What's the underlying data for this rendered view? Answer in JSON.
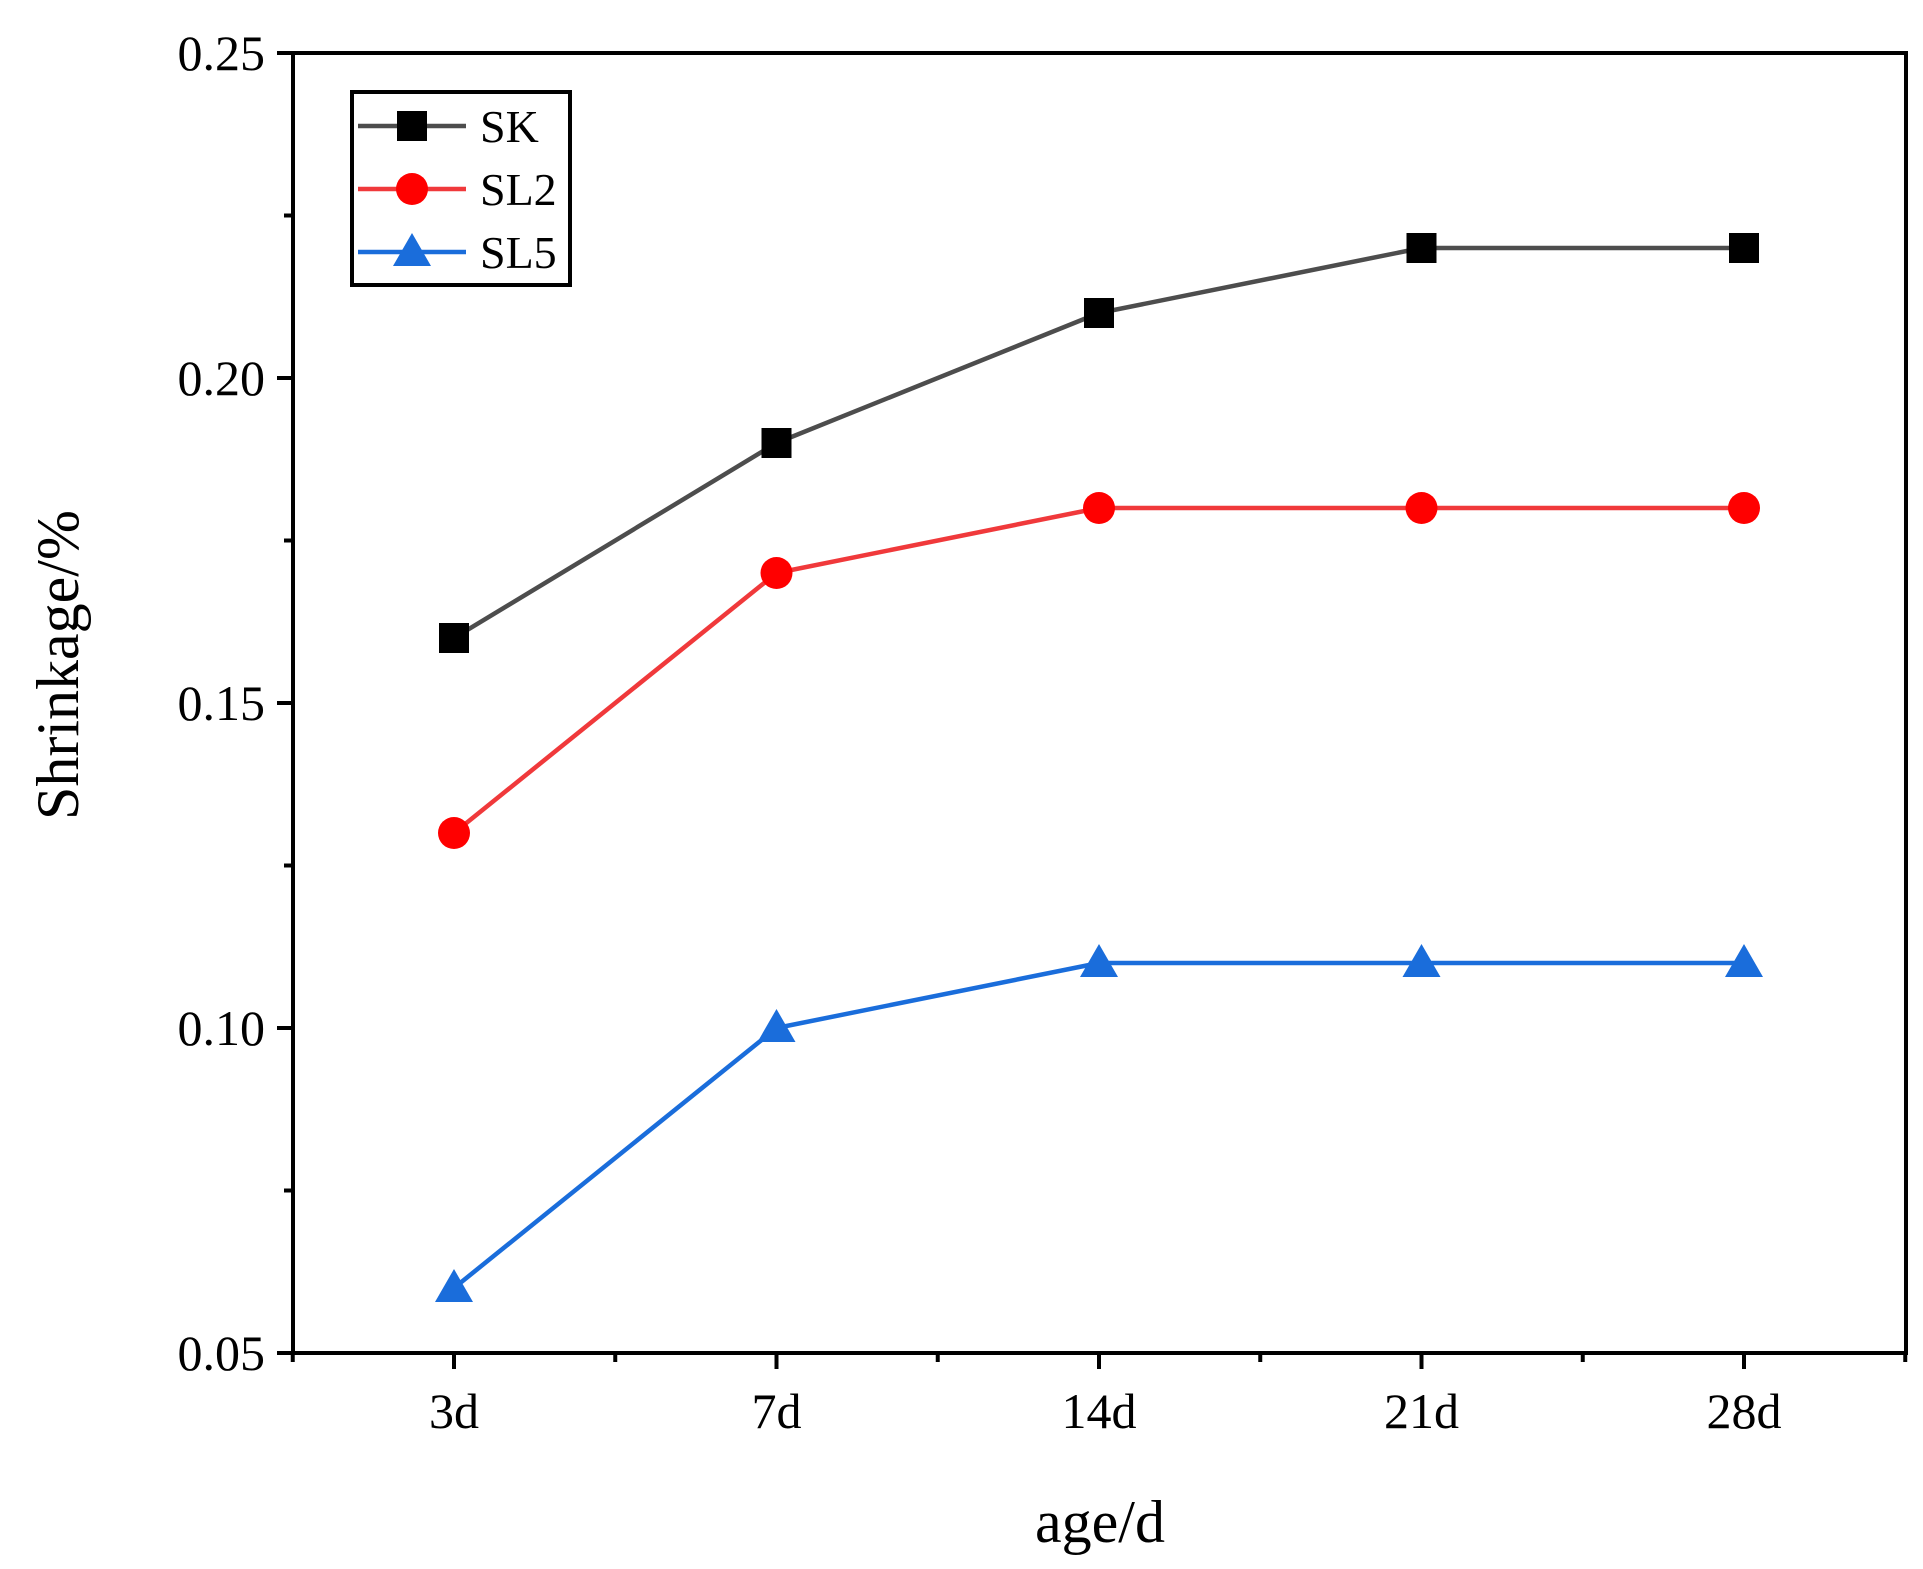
{
  "chart_data": {
    "type": "line",
    "title": "",
    "xlabel": "age/d",
    "ylabel": "Shrinkage/%",
    "categories": [
      "3d",
      "7d",
      "14d",
      "21d",
      "28d"
    ],
    "ylim": [
      0.05,
      0.25
    ],
    "yticks": [
      0.05,
      0.1,
      0.15,
      0.2,
      0.25
    ],
    "ytick_labels": [
      "0.05",
      "0.10",
      "0.15",
      "0.20",
      "0.25"
    ],
    "y_minor_ticks": [
      0.075,
      0.125,
      0.175,
      0.225
    ],
    "grid": false,
    "legend_position": "top-left",
    "series": [
      {
        "name": "SK",
        "marker": "square",
        "color": "#000000",
        "line_color": "#4d4d4d",
        "values": [
          0.16,
          0.19,
          0.21,
          0.22,
          0.22
        ]
      },
      {
        "name": "SL2",
        "marker": "circle",
        "color": "#ff0000",
        "line_color": "#f0393b",
        "values": [
          0.13,
          0.17,
          0.18,
          0.18,
          0.18
        ]
      },
      {
        "name": "SL5",
        "marker": "triangle",
        "color": "#1a6ddb",
        "line_color": "#1a6ddb",
        "values": [
          0.06,
          0.1,
          0.11,
          0.11,
          0.11
        ]
      }
    ]
  }
}
